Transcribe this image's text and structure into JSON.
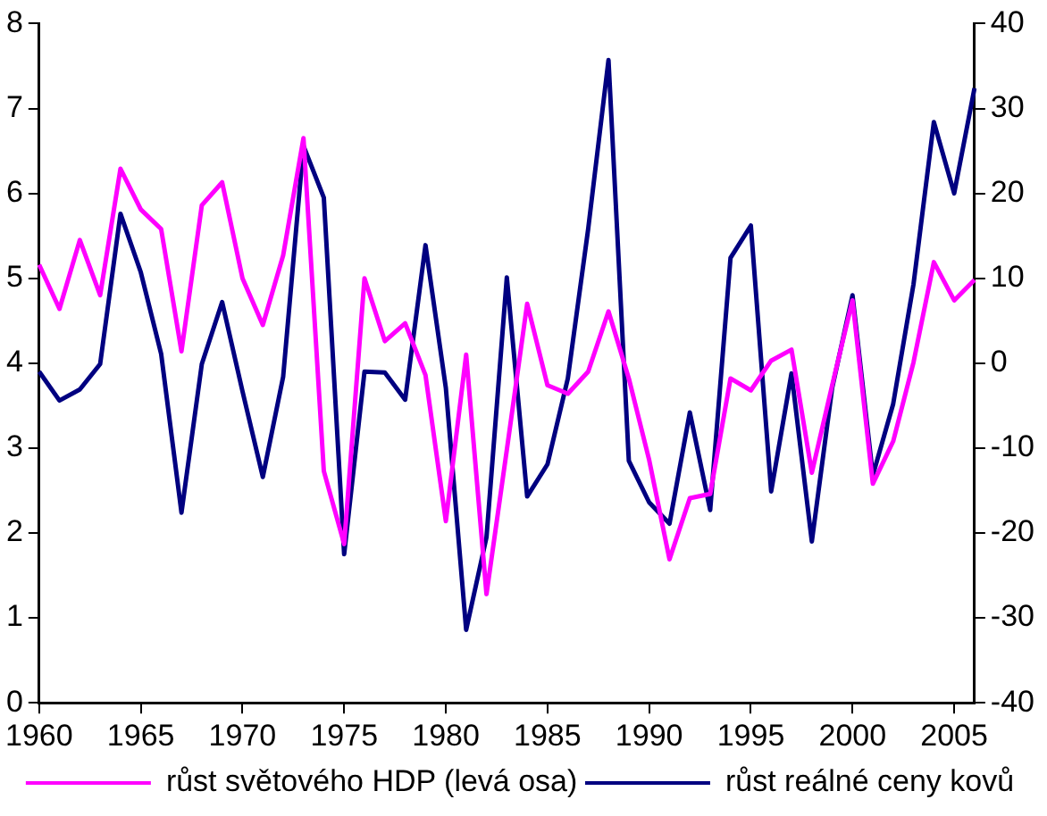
{
  "chart_data": {
    "type": "line",
    "categories": [
      "1960",
      null,
      null,
      null,
      null,
      "1965",
      null,
      null,
      null,
      null,
      "1970",
      null,
      null,
      null,
      null,
      "1975",
      null,
      null,
      null,
      null,
      "1980",
      null,
      null,
      null,
      null,
      "1985",
      null,
      null,
      null,
      null,
      "1990",
      null,
      null,
      null,
      null,
      "1995",
      null,
      null,
      null,
      null,
      "2000",
      null,
      null,
      null,
      null,
      "2005",
      null
    ],
    "series": [
      {
        "name": "růst světového HDP (levá osa)",
        "color": "#ff00ff",
        "values": [
          5.16,
          4.64,
          5.45,
          4.8,
          6.29,
          5.81,
          5.58,
          4.14,
          5.86,
          6.13,
          5.0,
          4.45,
          5.27,
          6.65,
          2.73,
          1.87,
          5.0,
          4.26,
          4.47,
          3.86,
          2.14,
          4.1,
          1.28,
          2.98,
          4.7,
          3.74,
          3.64,
          3.9,
          4.61,
          3.82,
          2.86,
          1.69,
          2.41,
          2.46,
          3.82,
          3.68,
          4.03,
          4.16,
          2.71,
          3.74,
          4.74,
          2.58,
          3.08,
          4.01,
          5.19,
          4.74,
          4.98
        ]
      },
      {
        "name": "růst reálné ceny kovů",
        "color": "#000080",
        "axis": "y2",
        "values": [
          -1.0,
          -4.4,
          -3.1,
          -0.1,
          17.6,
          10.7,
          1.1,
          -17.6,
          -0.1,
          7.2,
          -3.3,
          -13.4,
          -1.6,
          25.6,
          19.5,
          -22.5,
          -1.0,
          -1.1,
          -4.3,
          13.9,
          -2.9,
          -31.4,
          -20.5,
          10.1,
          -15.7,
          -11.9,
          -1.8,
          15.8,
          35.7,
          -11.5,
          -16.4,
          -18.9,
          -5.8,
          -17.3,
          12.4,
          16.2,
          -15.1,
          -1.2,
          -21.0,
          -2.9,
          8.0,
          -13.2,
          -4.8,
          9.3,
          28.4,
          20.0,
          32.4
        ]
      }
    ],
    "ylim": [
      0,
      8
    ],
    "yticks": [
      0,
      1,
      2,
      3,
      4,
      5,
      6,
      7,
      8
    ],
    "y2lim": [
      -40,
      40
    ],
    "y2ticks": [
      -40,
      -30,
      -20,
      -10,
      0,
      10,
      20,
      30,
      40
    ],
    "grid": false,
    "legend": "bottom",
    "marker": "none",
    "line_style": "solid"
  }
}
